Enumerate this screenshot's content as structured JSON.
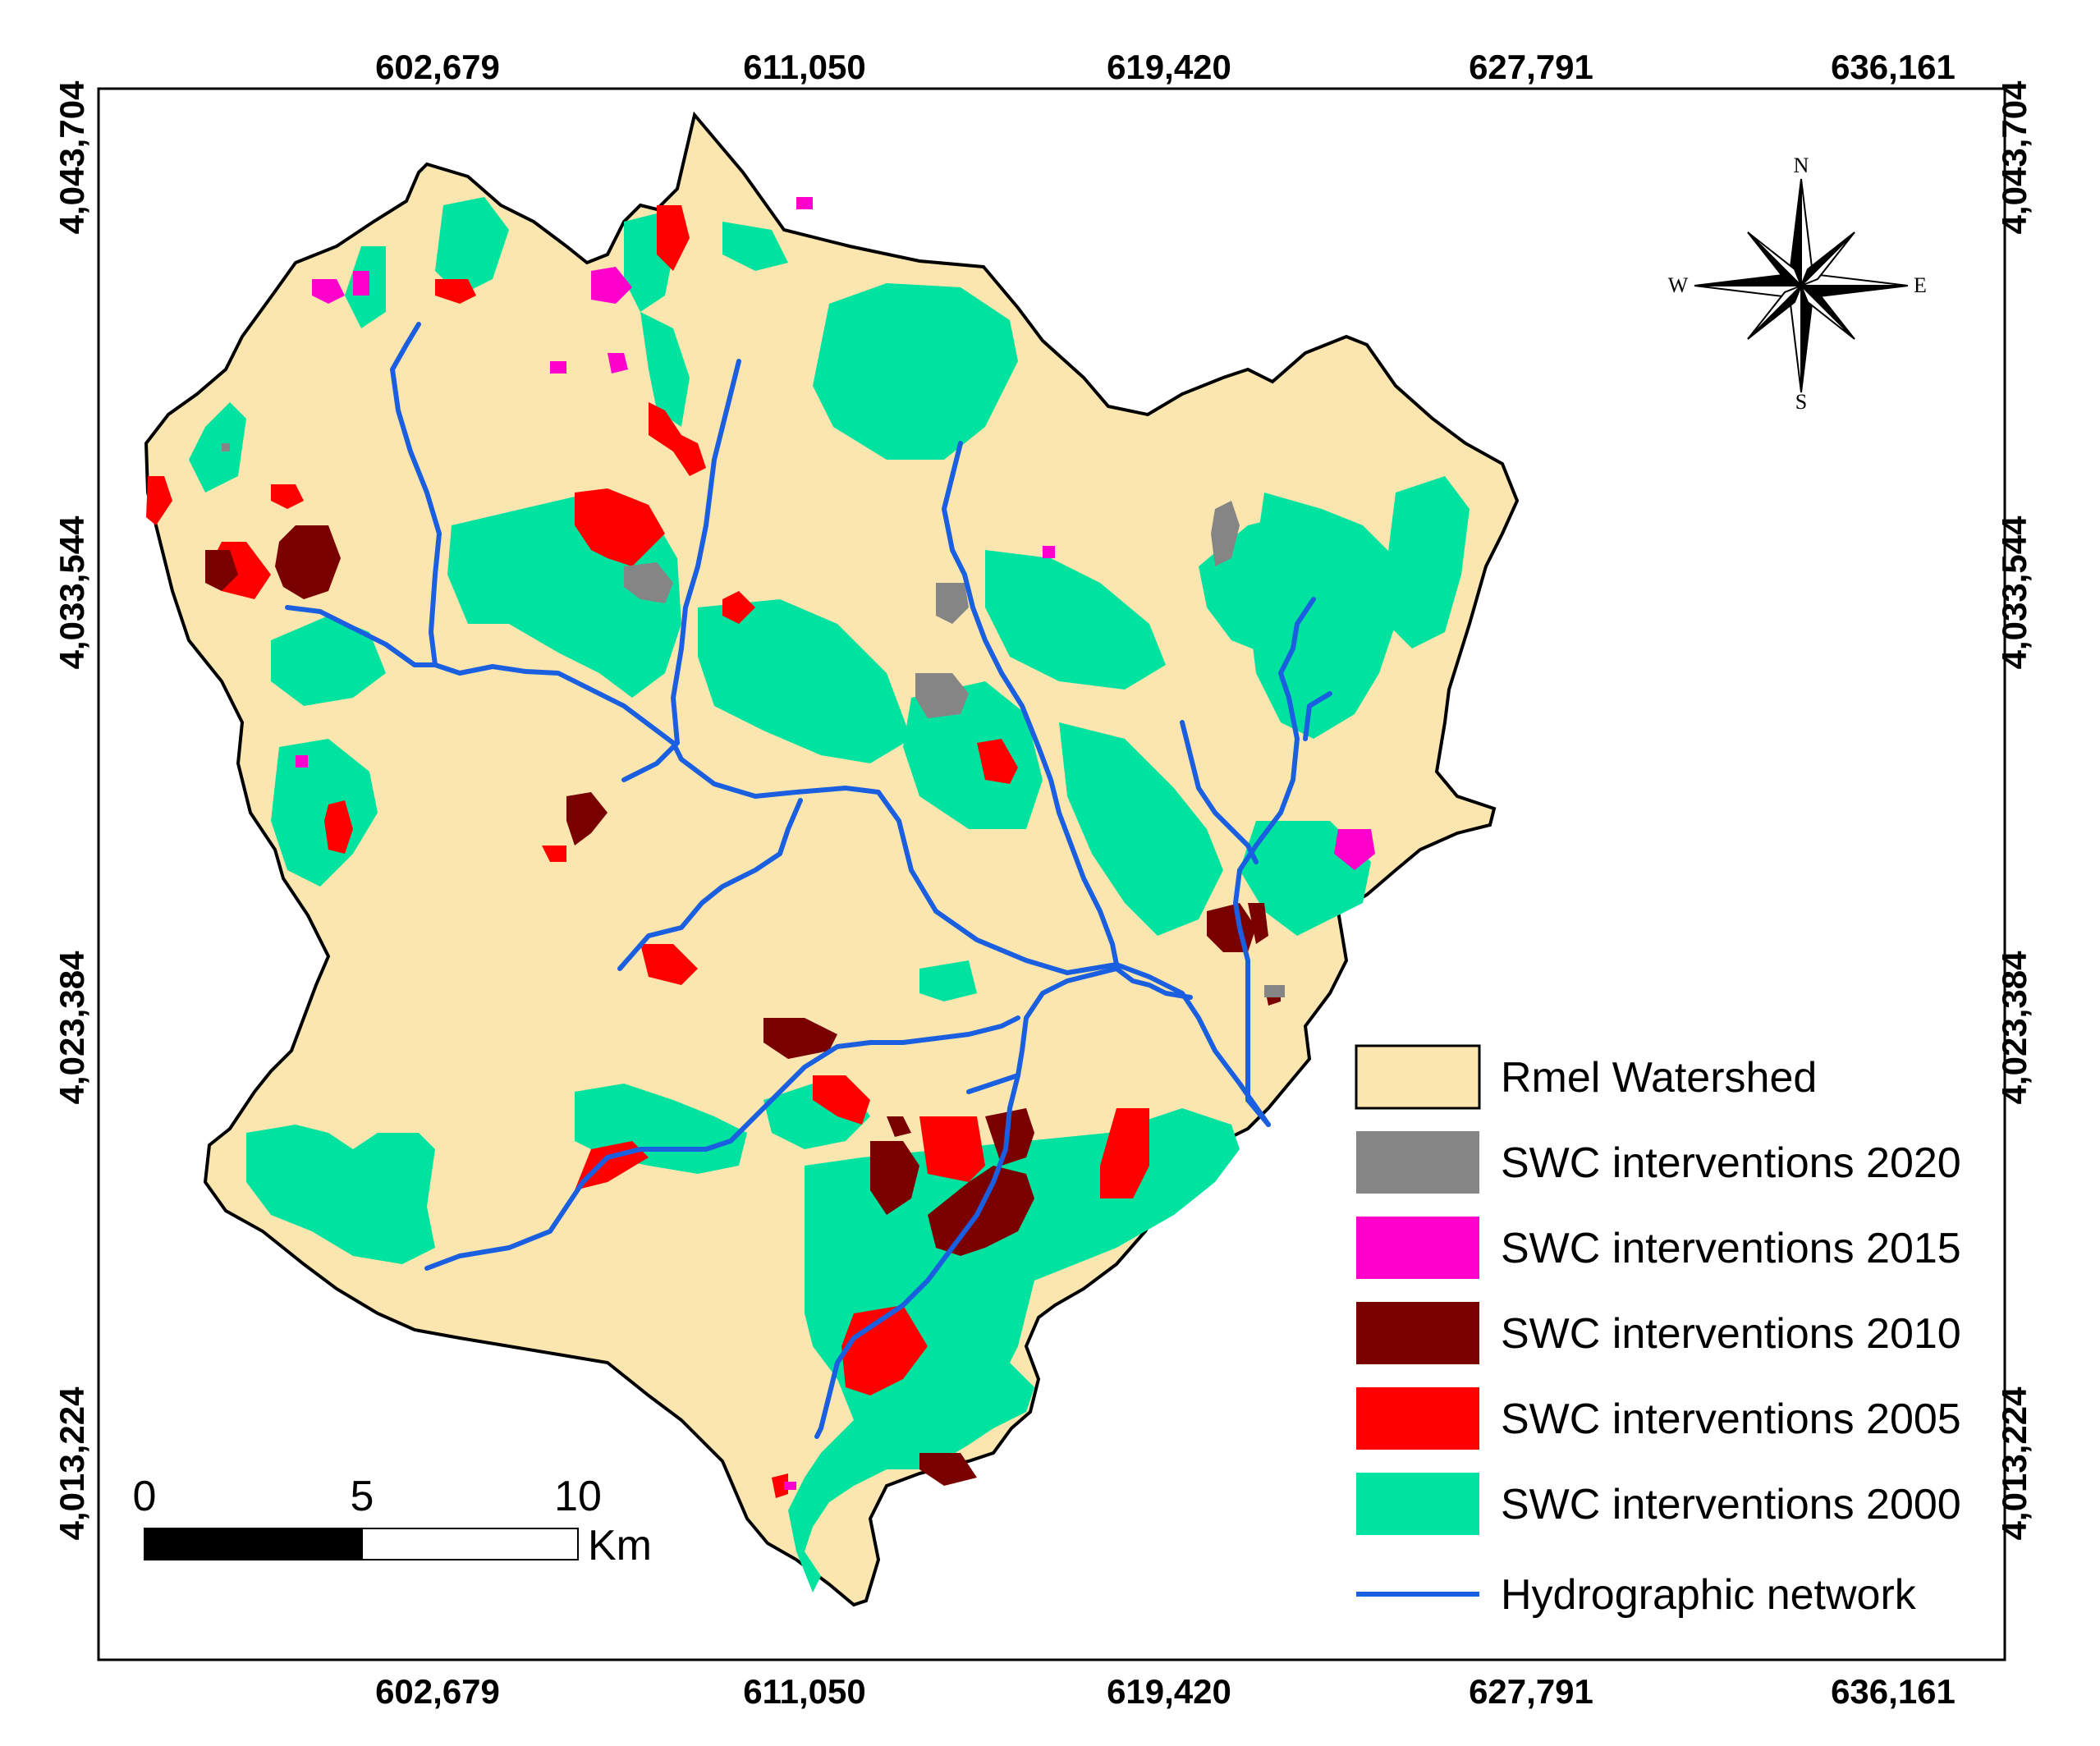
{
  "map": {
    "x_ticks": [
      "602,679",
      "611,050",
      "619,420",
      "627,791",
      "636,161"
    ],
    "y_ticks": [
      "4,043,704",
      "4,033,544",
      "4,023,384",
      "4,013,224"
    ]
  },
  "compass": {
    "n": "N",
    "s": "S",
    "e": "E",
    "w": "W"
  },
  "scale_bar": {
    "labels": [
      "0",
      "5",
      "10"
    ],
    "unit": "Km"
  },
  "legend": {
    "items": [
      {
        "label": "Rmel Watershed",
        "color": "#fbe6b0"
      },
      {
        "label": "SWC interventions 2020",
        "color": "#858585"
      },
      {
        "label": "SWC interventions 2015",
        "color": "#ff00cc"
      },
      {
        "label": "SWC interventions 2010",
        "color": "#7a0000"
      },
      {
        "label": "SWC interventions 2005",
        "color": "#ff0000"
      },
      {
        "label": "SWC interventions 2000",
        "color": "#00e3a0"
      },
      {
        "label": "Hydrographic network",
        "color": "#1a5fe0"
      }
    ]
  },
  "colors": {
    "watershed": "#fbe6b0",
    "river": "#1a5fe0",
    "swc2000": "#00e3a0",
    "swc2005": "#ff0000",
    "swc2010": "#7a0000",
    "swc2015": "#ff00cc",
    "swc2020": "#858585"
  }
}
